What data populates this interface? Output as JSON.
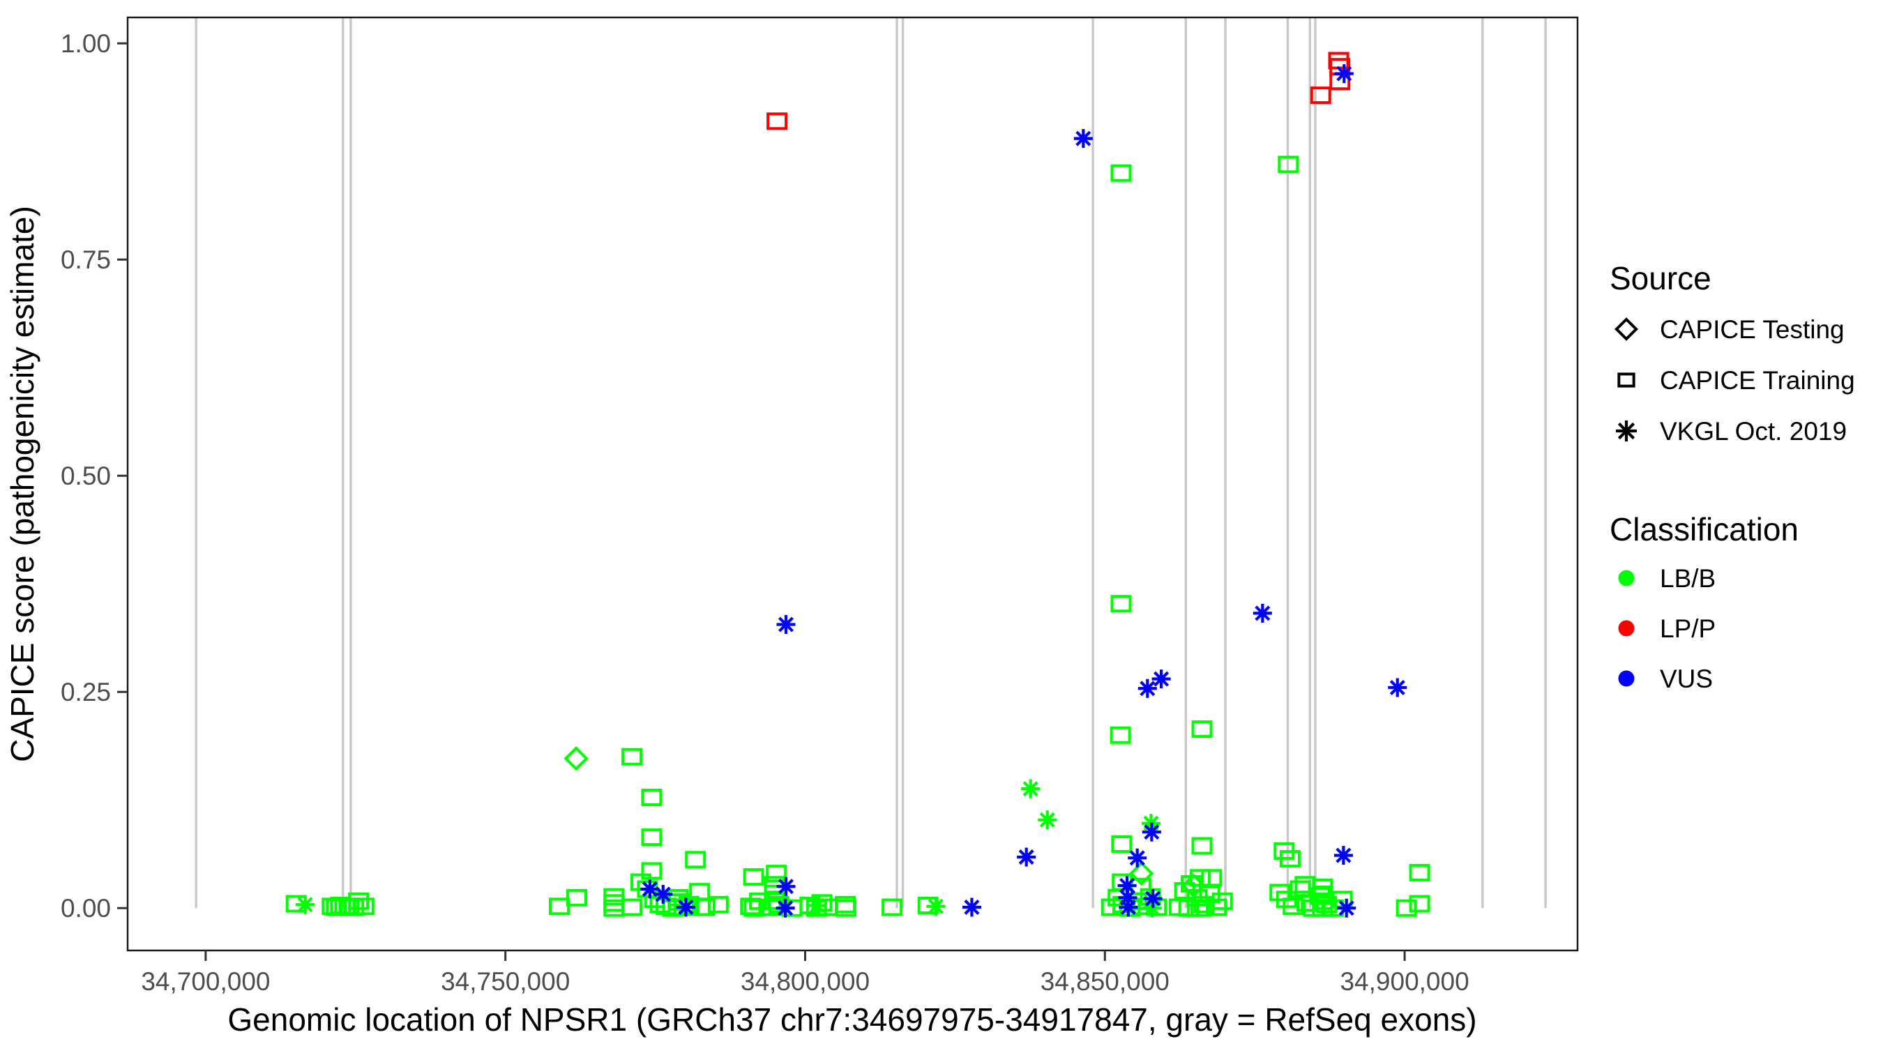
{
  "chart_data": {
    "type": "scatter",
    "title": "",
    "xlabel": "Genomic location of NPSR1 (GRCh37 chr7:34697975-34917847, gray = RefSeq exons)",
    "ylabel": "CAPICE score (pathogenicity estimate)",
    "x_domain": [
      34686981,
      34928841
    ],
    "y_domain": [
      -0.049,
      1.03
    ],
    "grid": false,
    "legend_position": "right",
    "x_ticks": {
      "values": [
        34700000,
        34750000,
        34800000,
        34850000,
        34900000
      ],
      "labels": [
        "34,700,000",
        "34,750,000",
        "34,800,000",
        "34,850,000",
        "34,900,000"
      ]
    },
    "y_ticks": {
      "values": [
        0,
        0.25,
        0.5,
        0.75,
        1
      ],
      "labels": [
        "0.00",
        "0.25",
        "0.50",
        "0.75",
        "1.00"
      ]
    },
    "exon_color": "#c9c9c9",
    "exon_positions": [
      34698400,
      34722900,
      34724200,
      34815300,
      34816300,
      34848000,
      34863500,
      34870100,
      34880500,
      34884200,
      34885100,
      34913000,
      34923500
    ],
    "colors": {
      "LB/B": "#00ff00",
      "LP/P": "#ff0000",
      "VUS": "#0000ff"
    },
    "shape_names": {
      "sq": "CAPICE Training",
      "di": "CAPICE Testing",
      "as": "VKGL Oct. 2019"
    },
    "legend": {
      "source": {
        "title": "Source",
        "items": [
          {
            "shape": "diamond",
            "label": "CAPICE Testing"
          },
          {
            "shape": "square",
            "label": "CAPICE Training"
          },
          {
            "shape": "asterisk",
            "label": "VKGL Oct. 2019"
          }
        ]
      },
      "classification": {
        "title": "Classification",
        "items": [
          {
            "color": "#00ff00",
            "label": "LB/B"
          },
          {
            "color": "#ff0000",
            "label": "LP/P"
          },
          {
            "color": "#0000ff",
            "label": "VUS"
          }
        ]
      }
    },
    "points": [
      [
        34715100,
        0.005,
        "sq",
        "LB/B"
      ],
      [
        34716600,
        0.004,
        "as",
        "LB/B"
      ],
      [
        34721100,
        0.002,
        "sq",
        "LB/B"
      ],
      [
        34721800,
        0.001,
        "sq",
        "LB/B"
      ],
      [
        34722500,
        0.003,
        "sq",
        "LB/B"
      ],
      [
        34723200,
        0.001,
        "sq",
        "LB/B"
      ],
      [
        34723900,
        0.002,
        "sq",
        "LB/B"
      ],
      [
        34724700,
        0.001,
        "sq",
        "LB/B"
      ],
      [
        34725500,
        0.008,
        "sq",
        "LB/B"
      ],
      [
        34726400,
        0.002,
        "sq",
        "LB/B"
      ],
      [
        34759000,
        0.002,
        "sq",
        "LB/B"
      ],
      [
        34761900,
        0.012,
        "sq",
        "LB/B"
      ],
      [
        34761800,
        0.173,
        "di",
        "LB/B"
      ],
      [
        34768100,
        0.013,
        "sq",
        "LB/B"
      ],
      [
        34768100,
        0.006,
        "sq",
        "LB/B"
      ],
      [
        34768100,
        0.0,
        "sq",
        "LB/B"
      ],
      [
        34771100,
        0.175,
        "sq",
        "LB/B"
      ],
      [
        34771100,
        0.001,
        "sq",
        "LB/B"
      ],
      [
        34774400,
        0.128,
        "sq",
        "LB/B"
      ],
      [
        34774400,
        0.082,
        "sq",
        "LB/B"
      ],
      [
        34774400,
        0.043,
        "sq",
        "LB/B"
      ],
      [
        34772600,
        0.03,
        "sq",
        "LB/B"
      ],
      [
        34773700,
        0.022,
        "sq",
        "LB/B"
      ],
      [
        34774900,
        0.01,
        "sq",
        "LB/B"
      ],
      [
        34775800,
        0.004,
        "sq",
        "LB/B"
      ],
      [
        34776800,
        0.002,
        "sq",
        "LB/B"
      ],
      [
        34777900,
        0.0,
        "sq",
        "LB/B"
      ],
      [
        34778900,
        0.007,
        "sq",
        "LB/B"
      ],
      [
        34779800,
        0.001,
        "sq",
        "LB/B"
      ],
      [
        34774100,
        0.022,
        "as",
        "VUS"
      ],
      [
        34776300,
        0.016,
        "as",
        "VUS"
      ],
      [
        34781700,
        0.056,
        "sq",
        "LB/B"
      ],
      [
        34780100,
        0.001,
        "as",
        "VUS"
      ],
      [
        34778800,
        0.012,
        "sq",
        "LB/B"
      ],
      [
        34780600,
        0.004,
        "sq",
        "LB/B"
      ],
      [
        34782400,
        0.019,
        "sq",
        "LB/B"
      ],
      [
        34783300,
        0.001,
        "sq",
        "LB/B"
      ],
      [
        34785500,
        0.004,
        "sq",
        "LB/B"
      ],
      [
        34791400,
        0.036,
        "sq",
        "LB/B"
      ],
      [
        34795200,
        0.04,
        "sq",
        "LB/B"
      ],
      [
        34794900,
        0.027,
        "sq",
        "LB/B"
      ],
      [
        34794900,
        0.017,
        "sq",
        "LB/B"
      ],
      [
        34794900,
        0.008,
        "sq",
        "LB/B"
      ],
      [
        34790900,
        0.002,
        "sq",
        "LB/B"
      ],
      [
        34792400,
        0.008,
        "sq",
        "LB/B"
      ],
      [
        34791500,
        0.0,
        "sq",
        "LB/B"
      ],
      [
        34796800,
        0.025,
        "as",
        "VUS"
      ],
      [
        34796700,
        0.0,
        "as",
        "VUS"
      ],
      [
        34794300,
        0.001,
        "sq",
        "LB/B"
      ],
      [
        34795600,
        0.004,
        "sq",
        "LB/B"
      ],
      [
        34797800,
        0.0,
        "sq",
        "LB/B"
      ],
      [
        34795300,
        0.91,
        "sq",
        "LP/P"
      ],
      [
        34796800,
        0.328,
        "as",
        "VUS"
      ],
      [
        34800800,
        0.003,
        "sq",
        "LB/B"
      ],
      [
        34801900,
        0.0,
        "sq",
        "LB/B"
      ],
      [
        34802800,
        0.006,
        "sq",
        "LB/B"
      ],
      [
        34803700,
        0.001,
        "sq",
        "LB/B"
      ],
      [
        34802000,
        0.003,
        "as",
        "LB/B"
      ],
      [
        34806700,
        0.004,
        "sq",
        "LB/B"
      ],
      [
        34806800,
        0.0,
        "sq",
        "LB/B"
      ],
      [
        34814500,
        0.001,
        "sq",
        "LB/B"
      ],
      [
        34820500,
        0.003,
        "sq",
        "LB/B"
      ],
      [
        34821800,
        0.002,
        "as",
        "LB/B"
      ],
      [
        34827800,
        0.001,
        "as",
        "VUS"
      ],
      [
        34837600,
        0.138,
        "as",
        "LB/B"
      ],
      [
        34840400,
        0.102,
        "as",
        "LB/B"
      ],
      [
        34836900,
        0.059,
        "as",
        "VUS"
      ],
      [
        34846400,
        0.89,
        "as",
        "VUS"
      ],
      [
        34852700,
        0.85,
        "sq",
        "LB/B"
      ],
      [
        34852700,
        0.352,
        "sq",
        "LB/B"
      ],
      [
        34852600,
        0.2,
        "sq",
        "LB/B"
      ],
      [
        34857100,
        0.254,
        "as",
        "VUS"
      ],
      [
        34859400,
        0.265,
        "as",
        "VUS"
      ],
      [
        34857700,
        0.098,
        "as",
        "LB/B"
      ],
      [
        34857800,
        0.088,
        "as",
        "VUS"
      ],
      [
        34852800,
        0.074,
        "sq",
        "LB/B"
      ],
      [
        34855400,
        0.058,
        "as",
        "VUS"
      ],
      [
        34856100,
        0.04,
        "di",
        "LB/B"
      ],
      [
        34852900,
        0.03,
        "sq",
        "LB/B"
      ],
      [
        34853700,
        0.026,
        "as",
        "VUS"
      ],
      [
        34856000,
        0.025,
        "sq",
        "LB/B"
      ],
      [
        34853800,
        0.012,
        "as",
        "VUS"
      ],
      [
        34853900,
        0.001,
        "as",
        "VUS"
      ],
      [
        34858000,
        0.011,
        "as",
        "VUS"
      ],
      [
        34857900,
        0.0,
        "as",
        "LB/B"
      ],
      [
        34851100,
        0.001,
        "sq",
        "LB/B"
      ],
      [
        34852200,
        0.012,
        "sq",
        "LB/B"
      ],
      [
        34853000,
        0.004,
        "sq",
        "LB/B"
      ],
      [
        34854200,
        0.0,
        "sq",
        "LB/B"
      ],
      [
        34855300,
        0.008,
        "sq",
        "LB/B"
      ],
      [
        34856400,
        0.002,
        "sq",
        "LB/B"
      ],
      [
        34857600,
        0.013,
        "sq",
        "LB/B"
      ],
      [
        34858600,
        0.001,
        "sq",
        "LB/B"
      ],
      [
        34862400,
        0.001,
        "sq",
        "LB/B"
      ],
      [
        34866200,
        0.207,
        "sq",
        "LB/B"
      ],
      [
        34866200,
        0.072,
        "sq",
        "LB/B"
      ],
      [
        34865900,
        0.035,
        "sq",
        "LB/B"
      ],
      [
        34867800,
        0.035,
        "sq",
        "LB/B"
      ],
      [
        34864800,
        0.026,
        "di",
        "LB/B"
      ],
      [
        34863300,
        0.02,
        "sq",
        "LB/B"
      ],
      [
        34864400,
        0.028,
        "sq",
        "LB/B"
      ],
      [
        34865400,
        0.012,
        "sq",
        "LB/B"
      ],
      [
        34866500,
        0.004,
        "sq",
        "LB/B"
      ],
      [
        34867500,
        0.016,
        "sq",
        "LB/B"
      ],
      [
        34868600,
        0.001,
        "sq",
        "LB/B"
      ],
      [
        34869600,
        0.008,
        "sq",
        "LB/B"
      ],
      [
        34864000,
        0.0,
        "sq",
        "LB/B"
      ],
      [
        34866000,
        0.0,
        "sq",
        "LB/B"
      ],
      [
        34880600,
        0.86,
        "sq",
        "LB/B"
      ],
      [
        34876300,
        0.341,
        "as",
        "VUS"
      ],
      [
        34879900,
        0.066,
        "sq",
        "LB/B"
      ],
      [
        34880900,
        0.057,
        "sq",
        "LB/B"
      ],
      [
        34883400,
        0.027,
        "sq",
        "LB/B"
      ],
      [
        34879200,
        0.018,
        "sq",
        "LB/B"
      ],
      [
        34880300,
        0.01,
        "sq",
        "LB/B"
      ],
      [
        34881400,
        0.002,
        "sq",
        "LB/B"
      ],
      [
        34882600,
        0.022,
        "sq",
        "LB/B"
      ],
      [
        34883700,
        0.006,
        "sq",
        "LB/B"
      ],
      [
        34884800,
        0.0,
        "sq",
        "LB/B"
      ],
      [
        34885900,
        0.014,
        "sq",
        "LB/B"
      ],
      [
        34887000,
        0.004,
        "sq",
        "LB/B"
      ],
      [
        34888100,
        0.0,
        "sq",
        "LB/B"
      ],
      [
        34886300,
        0.024,
        "sq",
        "LB/B"
      ],
      [
        34886300,
        0.016,
        "sq",
        "LB/B"
      ],
      [
        34886300,
        0.008,
        "sq",
        "LB/B"
      ],
      [
        34886300,
        0.0,
        "sq",
        "LB/B"
      ],
      [
        34889600,
        0.01,
        "sq",
        "LB/B"
      ],
      [
        34889800,
        0.061,
        "as",
        "VUS"
      ],
      [
        34890300,
        0.0,
        "as",
        "VUS"
      ],
      [
        34889000,
        0.98,
        "sq",
        "LP/P"
      ],
      [
        34889200,
        0.973,
        "sq",
        "LP/P"
      ],
      [
        34889200,
        0.956,
        "sq",
        "LP/P"
      ],
      [
        34886000,
        0.94,
        "sq",
        "LP/P"
      ],
      [
        34889900,
        0.965,
        "as",
        "VUS"
      ],
      [
        34898800,
        0.255,
        "as",
        "VUS"
      ],
      [
        34902500,
        0.041,
        "sq",
        "LB/B"
      ],
      [
        34900300,
        0.0,
        "sq",
        "LB/B"
      ],
      [
        34902500,
        0.005,
        "sq",
        "LB/B"
      ]
    ]
  }
}
